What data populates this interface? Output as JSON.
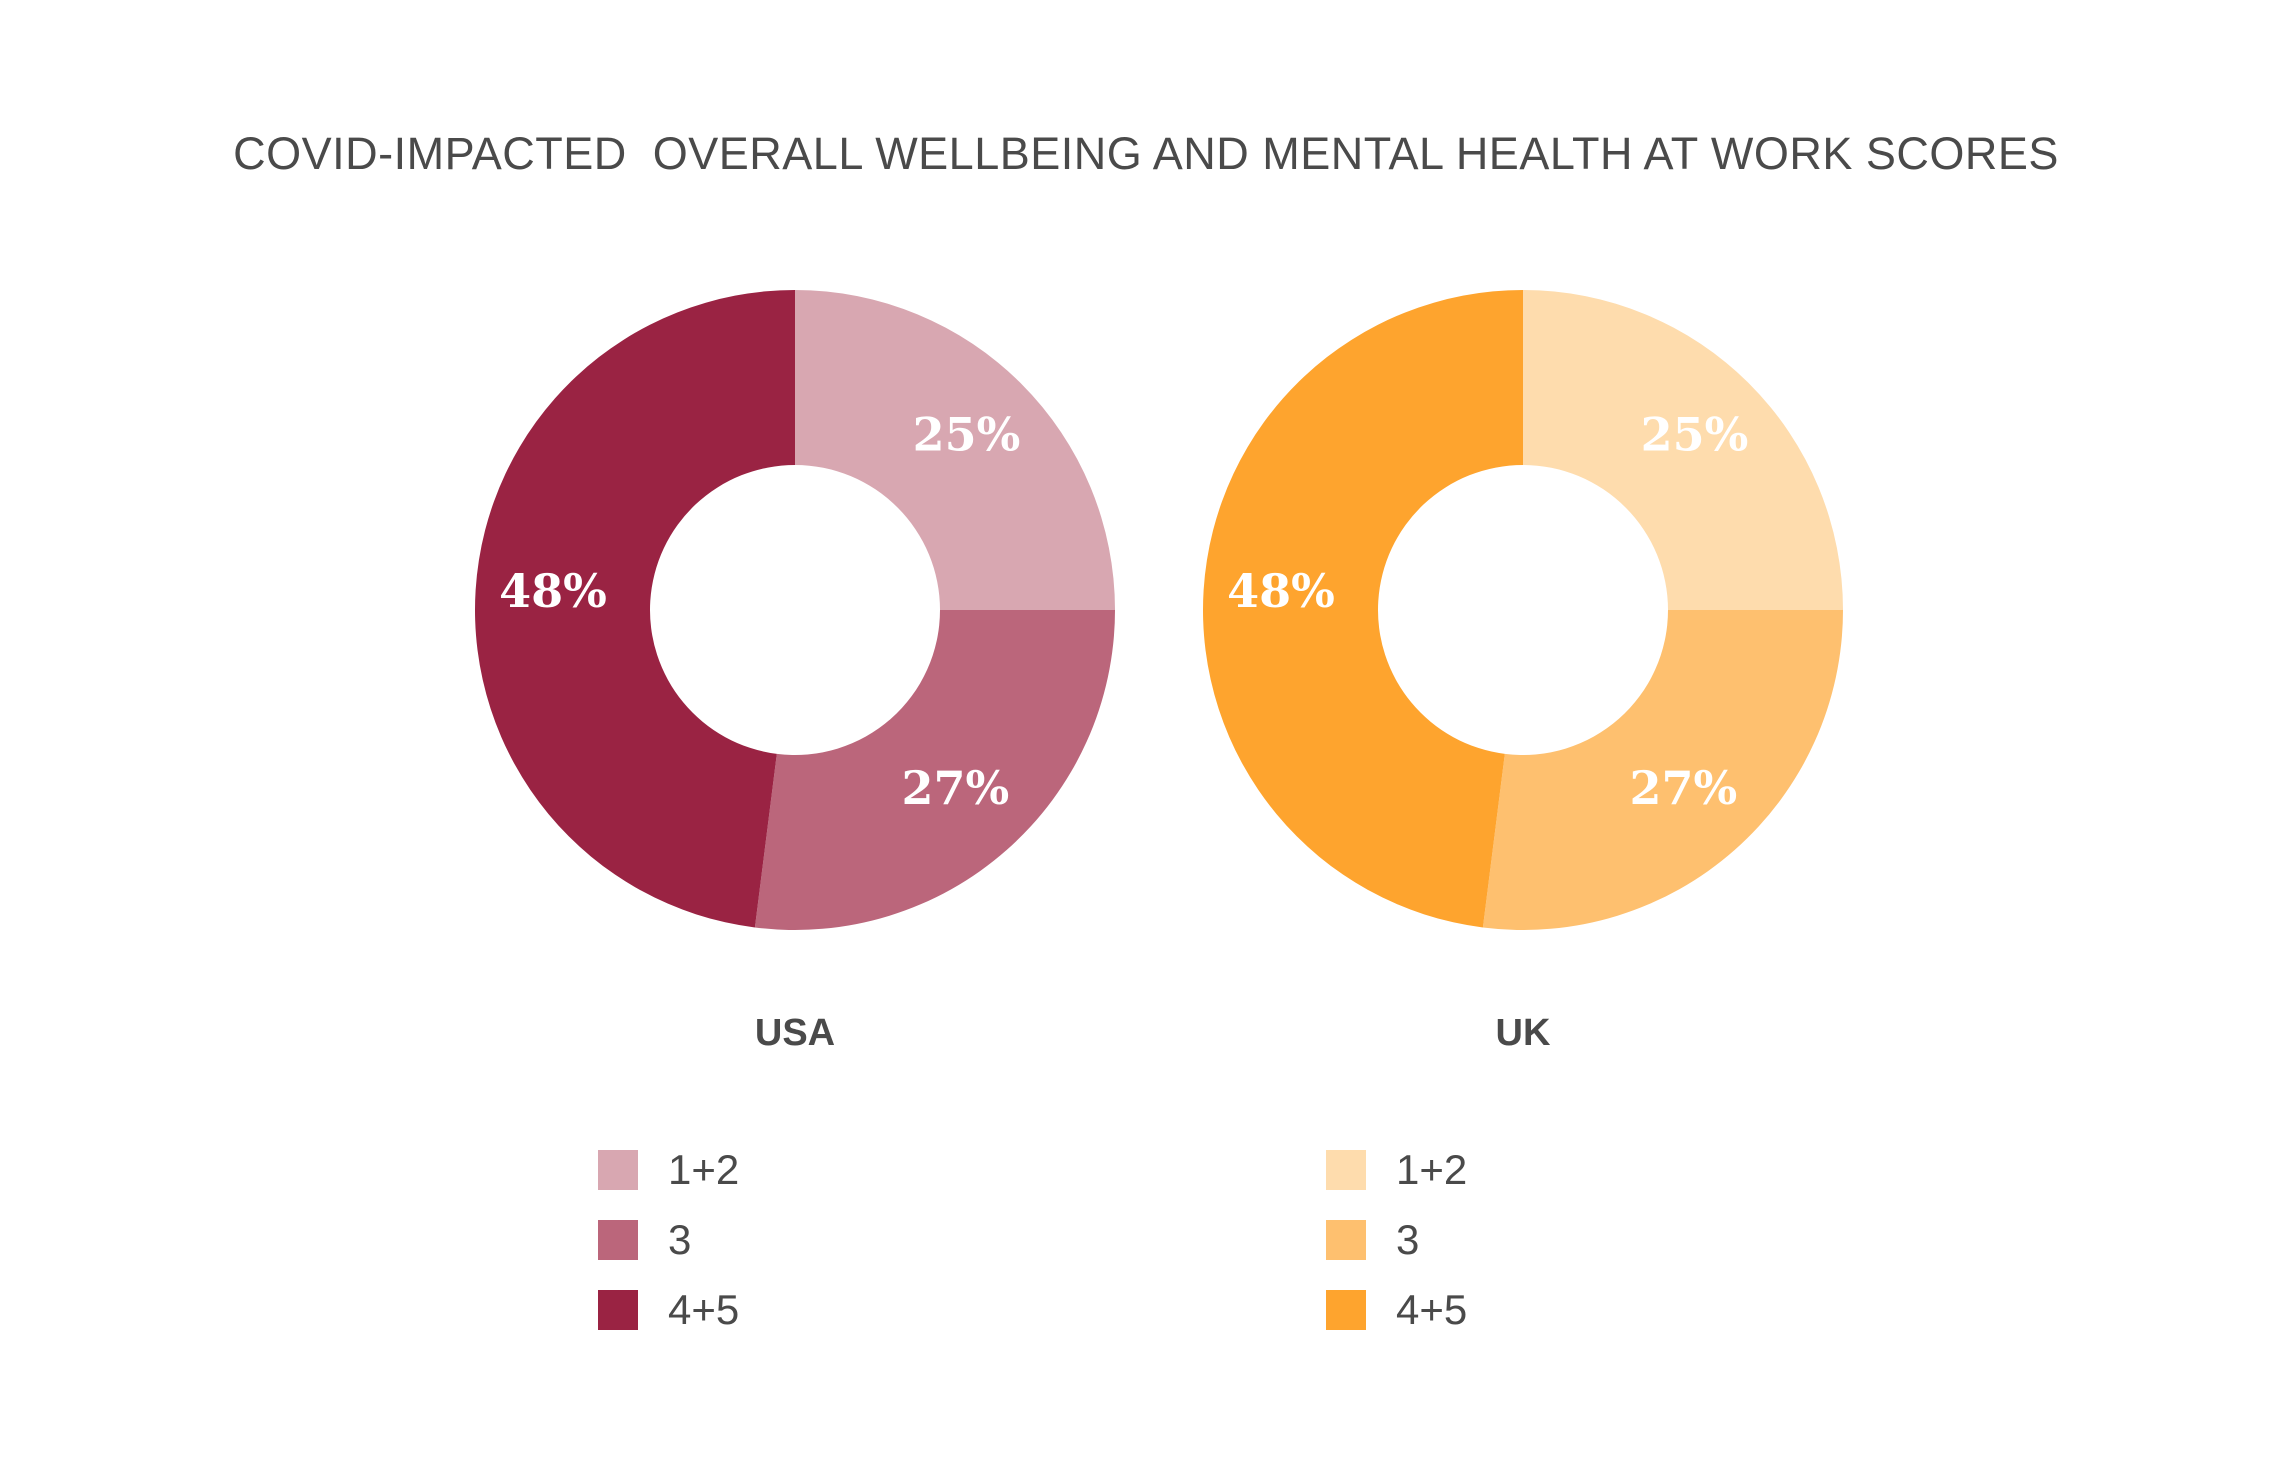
{
  "chart_data": [
    {
      "type": "donut",
      "title": "COVID-IMPACTED  OVERALL WELLBEING AND MENTAL HEALTH AT WORK SCORES",
      "label": "USA",
      "categories": [
        "1+2",
        "3",
        "4+5"
      ],
      "values": [
        25,
        27,
        48
      ],
      "value_labels": [
        "25%",
        "27%",
        "48%"
      ],
      "colors": [
        "#d8a7b1",
        "#bb667b",
        "#9a2343"
      ],
      "legend": "below"
    },
    {
      "type": "donut",
      "title": "COVID-IMPACTED  OVERALL WELLBEING AND MENTAL HEALTH AT WORK SCORES",
      "label": "UK",
      "categories": [
        "1+2",
        "3",
        "4+5"
      ],
      "values": [
        25,
        27,
        48
      ],
      "value_labels": [
        "25%",
        "27%",
        "48%"
      ],
      "colors": [
        "#fedcad",
        "#fec06f",
        "#fea42e"
      ],
      "legend": "below"
    }
  ],
  "title": "COVID-IMPACTED  OVERALL WELLBEING AND MENTAL HEALTH AT WORK SCORES",
  "charts": [
    {
      "caption": "USA",
      "legend": [
        {
          "label": "1+2",
          "color": "#d8a7b1"
        },
        {
          "label": "3",
          "color": "#bb667b"
        },
        {
          "label": "4+5",
          "color": "#9a2343"
        }
      ]
    },
    {
      "caption": "UK",
      "legend": [
        {
          "label": "1+2",
          "color": "#fedcad"
        },
        {
          "label": "3",
          "color": "#fec06f"
        },
        {
          "label": "4+5",
          "color": "#fea42e"
        }
      ]
    }
  ]
}
